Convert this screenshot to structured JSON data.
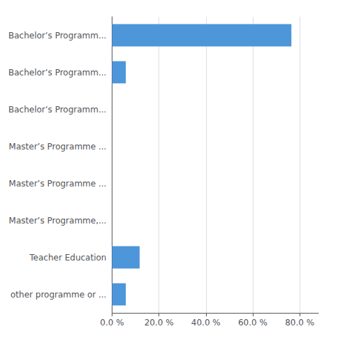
{
  "chart_data": {
    "type": "bar",
    "orientation": "horizontal",
    "categories": [
      "Bachelorʼs Programm...",
      "Bachelorʼs Programm...",
      "Bachelorʼs Programm...",
      "Master’s Programme ...",
      "Master’s Programme ...",
      "Master’s Programme,...",
      "Teacher Education",
      "other programme or ..."
    ],
    "values": [
      76.47,
      5.88,
      0.0,
      0.0,
      0.0,
      0.0,
      11.76,
      5.88
    ],
    "color": "#4d96d9",
    "xlim": [
      0,
      88
    ],
    "xticks": [
      {
        "value": 0,
        "label": "0.0 %"
      },
      {
        "value": 20,
        "label": "20.0 %"
      },
      {
        "value": 40,
        "label": "40.0 %"
      },
      {
        "value": 60,
        "label": "60.0 %"
      },
      {
        "value": 80,
        "label": "80.0 %"
      }
    ],
    "grid": true
  }
}
